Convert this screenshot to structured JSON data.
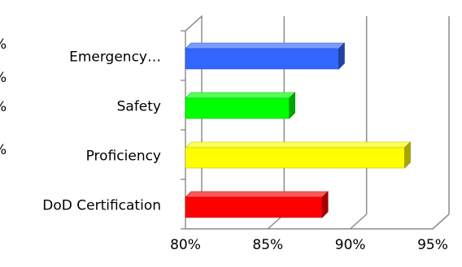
{
  "chart_data": {
    "type": "bar",
    "orientation": "horizontal",
    "style": "3d",
    "categories": [
      "DoD Certification",
      "Proficiency",
      "Safety",
      "Emergency…"
    ],
    "values": [
      88.3,
      93.3,
      86.3,
      89.3
    ],
    "colors": [
      "#ff0000",
      "#ffff00",
      "#00ff00",
      "#3366ff"
    ],
    "xlim": [
      80,
      95
    ],
    "xticks": [
      "80%",
      "85%",
      "90%",
      "95%"
    ],
    "grid": true,
    "left_margin_marks": [
      "%",
      "%",
      "%",
      "%"
    ]
  }
}
